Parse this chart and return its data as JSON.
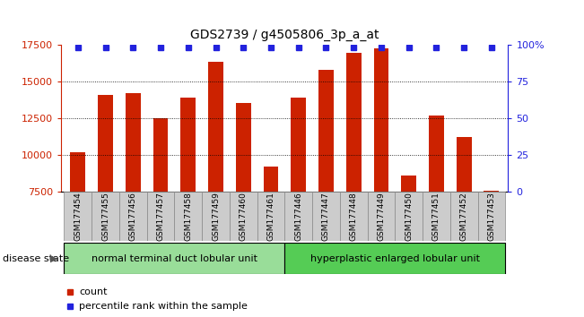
{
  "title": "GDS2739 / g4505806_3p_a_at",
  "samples": [
    "GSM177454",
    "GSM177455",
    "GSM177456",
    "GSM177457",
    "GSM177458",
    "GSM177459",
    "GSM177460",
    "GSM177461",
    "GSM177446",
    "GSM177447",
    "GSM177448",
    "GSM177449",
    "GSM177450",
    "GSM177451",
    "GSM177452",
    "GSM177453"
  ],
  "counts": [
    10200,
    14100,
    14200,
    12500,
    13900,
    16300,
    13500,
    9200,
    13900,
    15800,
    16900,
    17200,
    8600,
    12700,
    11200,
    7600
  ],
  "bar_color": "#cc2200",
  "percentile_color": "#2222dd",
  "ylim_left": [
    7500,
    17500
  ],
  "ylim_right": [
    0,
    100
  ],
  "yticks_left": [
    7500,
    10000,
    12500,
    15000,
    17500
  ],
  "yticks_right": [
    0,
    25,
    50,
    75,
    100
  ],
  "ytick_labels_right": [
    "0",
    "25",
    "50",
    "75",
    "100%"
  ],
  "grid_lines": [
    10000,
    12500,
    15000
  ],
  "groups": [
    {
      "label": "normal terminal duct lobular unit",
      "start": 0,
      "end": 8,
      "color": "#99dd99"
    },
    {
      "label": "hyperplastic enlarged lobular unit",
      "start": 8,
      "end": 16,
      "color": "#55cc55"
    }
  ],
  "disease_state_label": "disease state",
  "legend_count_label": "count",
  "legend_pct_label": "percentile rank within the sample",
  "bg_color": "#ffffff",
  "bar_width": 0.55,
  "percentile_marker_size": 5,
  "cell_color": "#cccccc",
  "cell_edge_color": "#888888"
}
